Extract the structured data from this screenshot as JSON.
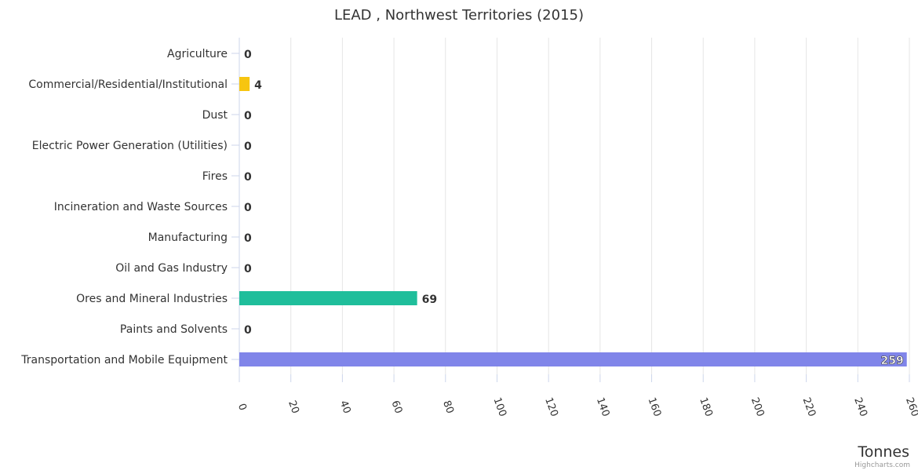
{
  "chart_data": {
    "type": "bar",
    "orientation": "horizontal",
    "title": "LEAD , Northwest Territories (2015)",
    "xlabel": "Tonnes",
    "ylabel": "",
    "categories": [
      "Agriculture",
      "Commercial/Residential/Institutional",
      "Dust",
      "Electric Power Generation (Utilities)",
      "Fires",
      "Incineration and Waste Sources",
      "Manufacturing",
      "Oil and Gas Industry",
      "Ores and Mineral Industries",
      "Paints and Solvents",
      "Transportation and Mobile Equipment"
    ],
    "values": [
      0,
      4,
      0,
      0,
      0,
      0,
      0,
      0,
      69,
      0,
      259
    ],
    "colors": [
      "#7cb5ec",
      "#f7c510",
      "#90ed7d",
      "#f7a35c",
      "#8085e9",
      "#f15c80",
      "#e4d354",
      "#2b908f",
      "#1fbe9b",
      "#91e8e1",
      "#8085e9"
    ],
    "xlim": [
      0,
      260
    ],
    "ticks": [
      0,
      20,
      40,
      60,
      80,
      100,
      120,
      140,
      160,
      180,
      200,
      220,
      240,
      260
    ],
    "grid": true,
    "legend": "none"
  },
  "credits": "Highcharts.com"
}
